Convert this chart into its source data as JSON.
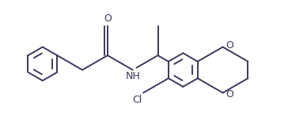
{
  "background_color": "#ffffff",
  "line_color": "#3a3a5c",
  "text_color": "#3a3a5c",
  "label_NH": "NH",
  "label_O_carbonyl": "O",
  "label_Cl": "Cl",
  "label_O1": "O",
  "label_O2": "O",
  "figsize": [
    3.88,
    1.52
  ],
  "dpi": 100,
  "lw": 1.4
}
